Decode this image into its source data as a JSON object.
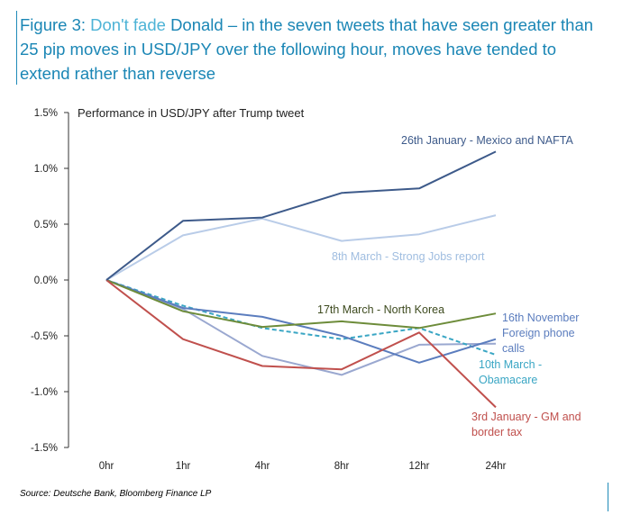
{
  "figure": {
    "title_part1": "Figure 3: ",
    "title_part2": "Don't fade ",
    "title_part3": "Donald – in the seven tweets that have seen greater than 25 pip moves in USD/JPY over the following hour, moves have tended to extend rather than reverse",
    "source": "Source: Deutsche Bank, Bloomberg Finance LP"
  },
  "colors": {
    "title_dark": "#1a86b5",
    "title_light": "#4db3d6"
  },
  "chart_data": {
    "type": "line",
    "title": "Performance in USD/JPY after Trump tweet",
    "xlabel": "",
    "ylabel": "",
    "categories": [
      "0hr",
      "1hr",
      "4hr",
      "8hr",
      "12hr",
      "24hr"
    ],
    "ylim": [
      -1.5,
      1.5
    ],
    "yticks": [
      1.5,
      1.0,
      0.5,
      0.0,
      -0.5,
      -1.0,
      -1.5
    ],
    "ytick_labels": [
      "1.5%",
      "1.0%",
      "0.5%",
      "0.0%",
      "-0.5%",
      "-1.0%",
      "-1.5%"
    ],
    "grid": false,
    "series": [
      {
        "name": "26th January - Mexico and NAFTA",
        "color": "#3d5a8a",
        "dashed": false,
        "label_color": "#3d5a8a",
        "values": [
          0,
          0.53,
          0.56,
          0.78,
          0.82,
          1.15
        ]
      },
      {
        "name": "8th March - Strong Jobs report",
        "color": "#b9cce8",
        "dashed": false,
        "label_color": "#9fbde0",
        "values": [
          0,
          0.4,
          0.55,
          0.35,
          0.41,
          0.58
        ]
      },
      {
        "name": "17th March - North Korea",
        "color": "#6d8c3a",
        "dashed": false,
        "label_color": "#3d4a1e",
        "values": [
          0,
          -0.28,
          -0.42,
          -0.37,
          -0.43,
          -0.3
        ]
      },
      {
        "name": "16th November Foreign phone calls",
        "color": "#5b7dbe",
        "dashed": false,
        "label_color": "#5b7dbe",
        "values": [
          0,
          -0.25,
          -0.33,
          -0.5,
          -0.74,
          -0.53
        ]
      },
      {
        "name": "10th March - Obamacare",
        "color": "#3aa6c4",
        "dashed": true,
        "label_color": "#3aa6c4",
        "values": [
          0,
          -0.23,
          -0.43,
          -0.53,
          -0.43,
          -0.67
        ]
      },
      {
        "name": "3rd January - GM and border tax",
        "color": "#c0504d",
        "dashed": false,
        "label_color": "#c0504d",
        "values": [
          0,
          -0.53,
          -0.77,
          -0.8,
          -0.47,
          -1.14
        ]
      },
      {
        "name": "",
        "color": "#9aa8d0",
        "dashed": false,
        "label_color": "#9aa8d0",
        "values": [
          0,
          -0.26,
          -0.68,
          -0.85,
          -0.58,
          -0.57
        ]
      }
    ],
    "annotations": [
      {
        "lines": [
          "26th January - Mexico and NAFTA"
        ],
        "series": 0
      },
      {
        "lines": [
          "8th March - Strong Jobs report"
        ],
        "series": 1
      },
      {
        "lines": [
          "17th March - North Korea"
        ],
        "series": 2
      },
      {
        "lines": [
          "16th November",
          "Foreign phone",
          "calls"
        ],
        "series": 3
      },
      {
        "lines": [
          "10th March -",
          "Obamacare"
        ],
        "series": 4
      },
      {
        "lines": [
          "3rd January - GM and",
          "border tax"
        ],
        "series": 5
      }
    ]
  }
}
